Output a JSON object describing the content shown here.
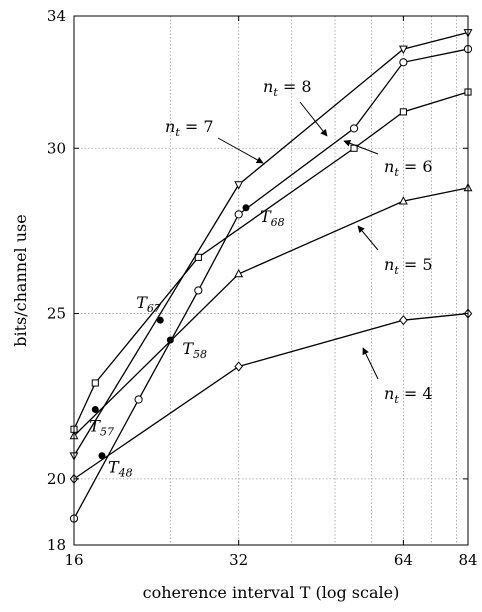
{
  "chart_data": {
    "type": "line",
    "title": "",
    "xlabel": "coherence interval T (log scale)",
    "ylabel": "bits/channel use",
    "xscale": "log",
    "xlim": [
      16,
      84
    ],
    "ylim": [
      18,
      34
    ],
    "x_ticks": [
      "16",
      "32",
      "64",
      "84"
    ],
    "y_ticks": [
      "18",
      "20",
      "25",
      "30",
      "34"
    ],
    "grid": true,
    "series": [
      {
        "name": "n_t = 4",
        "marker": "diamond",
        "x": [
          16,
          32,
          64,
          84
        ],
        "y": [
          20.0,
          23.4,
          24.8,
          25.0
        ]
      },
      {
        "name": "n_t = 5",
        "marker": "triangle-up",
        "x": [
          16,
          32,
          64,
          84
        ],
        "y": [
          21.3,
          26.2,
          28.4,
          28.8
        ]
      },
      {
        "name": "n_t = 6",
        "marker": "square",
        "x": [
          16,
          17.5,
          27,
          52,
          64,
          84
        ],
        "y": [
          21.5,
          22.9,
          26.7,
          30.0,
          31.1,
          31.7
        ]
      },
      {
        "name": "n_t = 7",
        "marker": "triangle-down",
        "x": [
          16,
          32,
          64,
          84
        ],
        "y": [
          20.7,
          28.9,
          33.0,
          33.5
        ]
      },
      {
        "name": "n_t = 8",
        "marker": "circle",
        "x": [
          16,
          21,
          27,
          32,
          52,
          64,
          84
        ],
        "y": [
          18.8,
          22.4,
          25.7,
          28.0,
          30.6,
          32.6,
          33.0
        ]
      }
    ],
    "transition_points": [
      {
        "label": "T",
        "sub": "48",
        "x": 18,
        "y": 20.7
      },
      {
        "label": "T",
        "sub": "57",
        "x": 17.5,
        "y": 22.1
      },
      {
        "label": "T",
        "sub": "58",
        "x": 24,
        "y": 24.2
      },
      {
        "label": "T",
        "sub": "67",
        "x": 23,
        "y": 24.8
      },
      {
        "label": "T",
        "sub": "68",
        "x": 33,
        "y": 28.2
      }
    ],
    "annotations": [
      {
        "id": "nt7",
        "prefix": "n",
        "sub": "t",
        "suffix": " = 7"
      },
      {
        "id": "nt8",
        "prefix": "n",
        "sub": "t",
        "suffix": " = 8"
      },
      {
        "id": "nt6",
        "prefix": "n",
        "sub": "t",
        "suffix": " = 6"
      },
      {
        "id": "nt5",
        "prefix": "n",
        "sub": "t",
        "suffix": " = 5"
      },
      {
        "id": "nt4",
        "prefix": "n",
        "sub": "t",
        "suffix": " = 4"
      }
    ]
  }
}
